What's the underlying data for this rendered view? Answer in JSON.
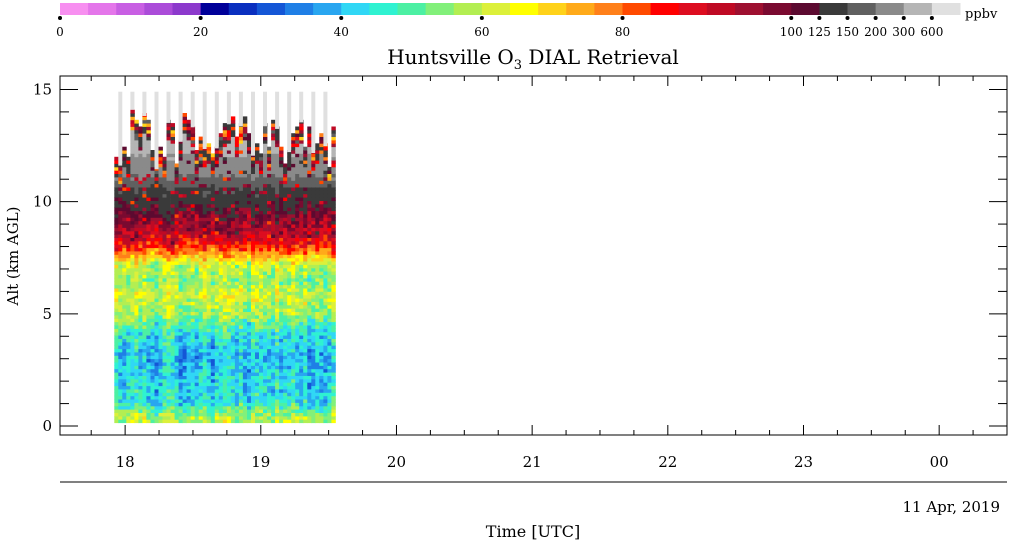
{
  "chart_data": {
    "type": "heatmap",
    "title_prefix": "Huntsville O",
    "title_subscript": "3",
    "title_suffix": " DIAL Retrieval",
    "xlabel": "Time [UTC]",
    "ylabel": "Alt (km AGL)",
    "date_label": "11 Apr, 2019",
    "x_ticks": [
      "18",
      "19",
      "20",
      "21",
      "22",
      "23",
      "00"
    ],
    "y_ticks": [
      "0",
      "5",
      "10",
      "15"
    ],
    "x_range_hours": [
      17.52,
      24.5
    ],
    "y_range_km": [
      -0.4,
      15.6
    ],
    "data_time_range_hours": [
      17.92,
      19.55
    ],
    "data_alt_range_km": [
      0.15,
      12.5
    ],
    "colorbar": {
      "unit": "ppbv",
      "labels": [
        "0",
        "20",
        "40",
        "60",
        "80",
        "100",
        "125",
        "150",
        "200",
        "300",
        "600"
      ],
      "colors": [
        "#f78ff0",
        "#e476ea",
        "#c85fe3",
        "#ab4cd9",
        "#8c39cc",
        "#000099",
        "#0a2fbf",
        "#1456d6",
        "#1f7fe6",
        "#29a6f0",
        "#30d7f5",
        "#2ff2d1",
        "#4cf0a3",
        "#82f07a",
        "#b3ee52",
        "#dcf03a",
        "#ffff00",
        "#ffd21a",
        "#ffaa1a",
        "#ff801a",
        "#ff4a00",
        "#ff0000",
        "#dd0d20",
        "#bf0a24",
        "#9e1030",
        "#7a0a30",
        "#5c0a30",
        "#3a3a3a",
        "#606060",
        "#8a8a8a",
        "#b5b5b5",
        "#e0e0e0"
      ]
    },
    "profile": {
      "alt_km": [
        0.3,
        1.0,
        2.0,
        3.0,
        4.0,
        5.0,
        5.8,
        6.5,
        7.2,
        7.8,
        8.5,
        9.5,
        10.5,
        11.5
      ],
      "o3_ppbv": [
        58,
        44,
        42,
        40,
        44,
        57,
        61,
        54,
        62,
        82,
        95,
        105,
        122,
        170
      ]
    }
  }
}
